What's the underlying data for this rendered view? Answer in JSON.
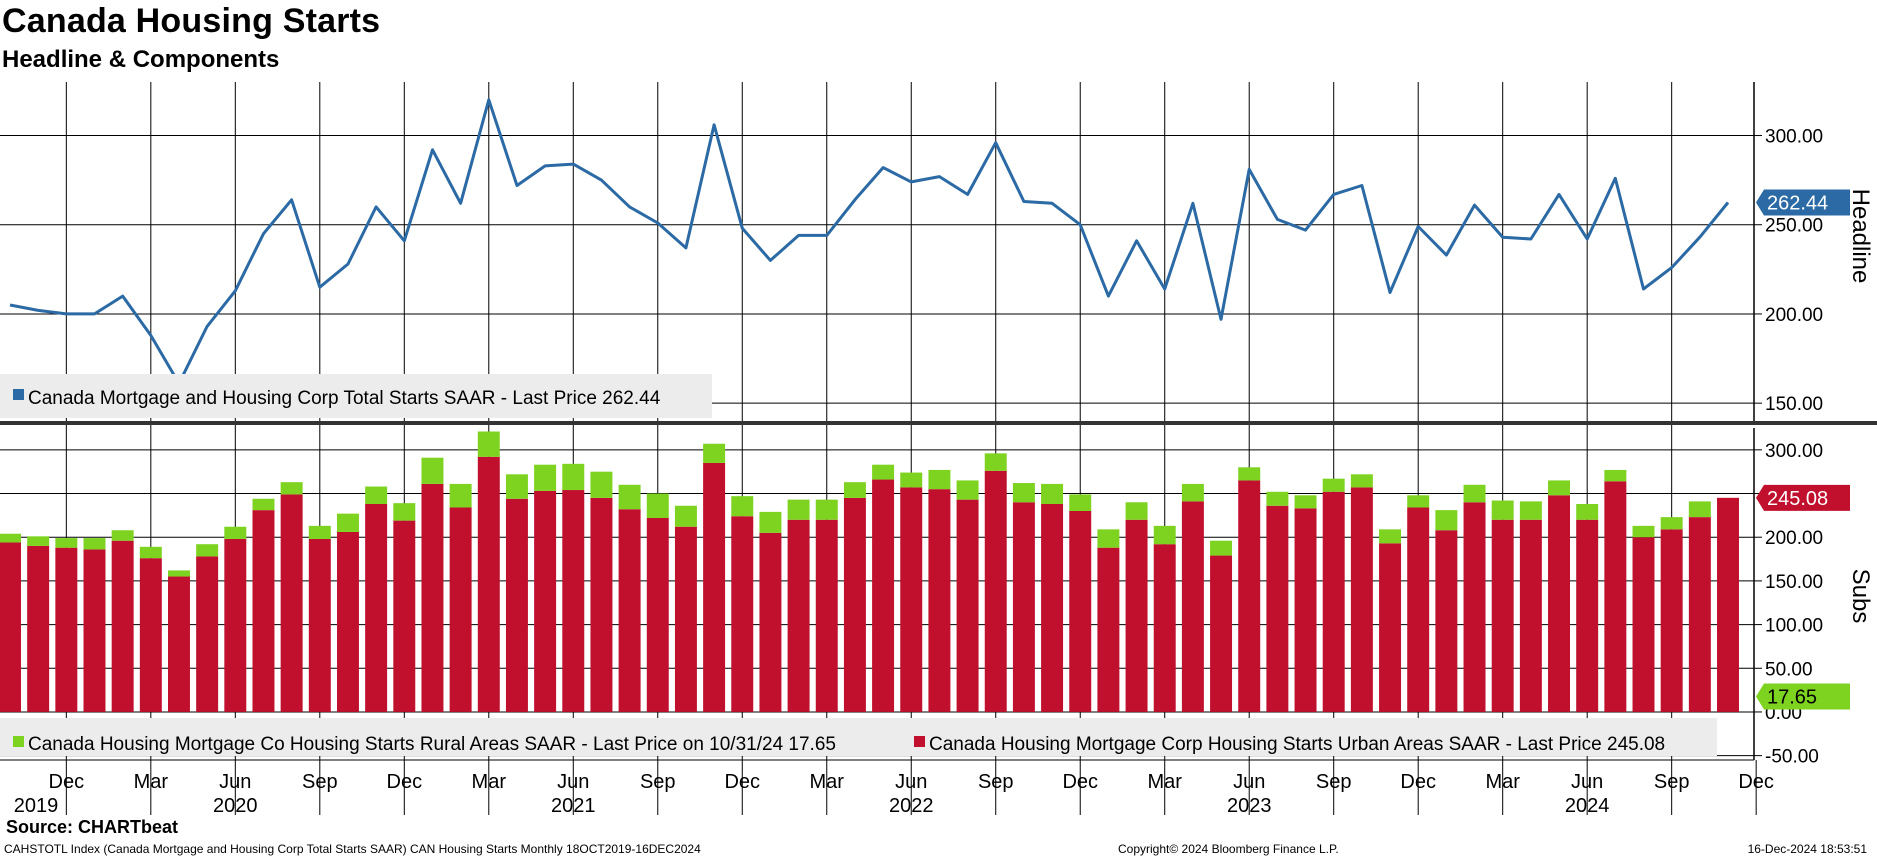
{
  "header": {
    "title": "Canada Housing Starts",
    "subtitle": "Headline & Components"
  },
  "footer": {
    "source": "Source: CHARTbeat",
    "index_text": "CAHSTOTL Index (Canada Mortgage and Housing Corp Total Starts SAAR) CAN Housing Starts  Monthly 18OCT2019-16DEC2024",
    "copyright": "Copyright© 2024 Bloomberg Finance L.P.",
    "timestamp": "16-Dec-2024 18:53:51"
  },
  "colors": {
    "headline": "#2b6aa4",
    "urban": "#c0102e",
    "rural": "#7ed321",
    "headline_tag": "#2b6aa4",
    "urban_tag": "#c0102e",
    "rural_tag": "#7ed321"
  },
  "chart_data": [
    {
      "type": "line",
      "panel": "Headline",
      "ylabel": "Headline",
      "ylim": [
        140,
        330
      ],
      "yticks": [
        "150.00",
        "200.00",
        "250.00",
        "300.00"
      ],
      "grid": true,
      "legend": "bottom-left",
      "x": [
        "2019-10",
        "2019-11",
        "2019-12",
        "2020-01",
        "2020-02",
        "2020-03",
        "2020-04",
        "2020-05",
        "2020-06",
        "2020-07",
        "2020-08",
        "2020-09",
        "2020-10",
        "2020-11",
        "2020-12",
        "2021-01",
        "2021-02",
        "2021-03",
        "2021-04",
        "2021-05",
        "2021-06",
        "2021-07",
        "2021-08",
        "2021-09",
        "2021-10",
        "2021-11",
        "2021-12",
        "2022-01",
        "2022-02",
        "2022-03",
        "2022-04",
        "2022-05",
        "2022-06",
        "2022-07",
        "2022-08",
        "2022-09",
        "2022-10",
        "2022-11",
        "2022-12",
        "2023-01",
        "2023-02",
        "2023-03",
        "2023-04",
        "2023-05",
        "2023-06",
        "2023-07",
        "2023-08",
        "2023-09",
        "2023-10",
        "2023-11",
        "2023-12",
        "2024-01",
        "2024-02",
        "2024-03",
        "2024-04",
        "2024-05",
        "2024-06",
        "2024-07",
        "2024-08",
        "2024-09",
        "2024-10",
        "2024-11"
      ],
      "series": [
        {
          "name": "Canada Mortgage and Housing Corp Total Starts SAAR",
          "values": [
            205,
            202,
            200,
            200,
            210,
            188,
            161,
            193,
            213,
            245,
            264,
            215,
            228,
            260,
            241,
            292,
            262,
            320,
            272,
            283,
            284,
            275,
            260,
            251,
            237,
            306,
            248,
            230,
            244,
            244,
            264,
            282,
            274,
            277,
            267,
            296,
            263,
            262,
            250,
            210,
            241,
            214,
            262,
            197,
            281,
            253,
            247,
            267,
            272,
            212,
            249,
            233,
            261,
            243,
            242,
            267,
            242,
            276,
            214,
            226,
            243,
            262.44
          ]
        }
      ],
      "legend_text": "Canada Mortgage and Housing Corp Total Starts SAAR - Last Price 262.44",
      "last_tag": "262.44"
    },
    {
      "type": "bar",
      "stacked": true,
      "panel": "Subs",
      "ylabel": "Subs",
      "ylim": [
        -55,
        325
      ],
      "yticks": [
        "-50.00",
        "0.00",
        "50.00",
        "100.00",
        "150.00",
        "200.00",
        "250.00",
        "300.00"
      ],
      "grid": true,
      "legend": "bottom-left",
      "x": [
        "2019-10",
        "2019-11",
        "2019-12",
        "2020-01",
        "2020-02",
        "2020-03",
        "2020-04",
        "2020-05",
        "2020-06",
        "2020-07",
        "2020-08",
        "2020-09",
        "2020-10",
        "2020-11",
        "2020-12",
        "2021-01",
        "2021-02",
        "2021-03",
        "2021-04",
        "2021-05",
        "2021-06",
        "2021-07",
        "2021-08",
        "2021-09",
        "2021-10",
        "2021-11",
        "2021-12",
        "2022-01",
        "2022-02",
        "2022-03",
        "2022-04",
        "2022-05",
        "2022-06",
        "2022-07",
        "2022-08",
        "2022-09",
        "2022-10",
        "2022-11",
        "2022-12",
        "2023-01",
        "2023-02",
        "2023-03",
        "2023-04",
        "2023-05",
        "2023-06",
        "2023-07",
        "2023-08",
        "2023-09",
        "2023-10",
        "2023-11",
        "2023-12",
        "2024-01",
        "2024-02",
        "2024-03",
        "2024-04",
        "2024-05",
        "2024-06",
        "2024-07",
        "2024-08",
        "2024-09",
        "2024-10",
        "2024-11"
      ],
      "series": [
        {
          "name": "Canada Housing Mortgage Corp Housing Starts Urban Areas SAAR",
          "values": [
            194,
            190,
            188,
            186,
            196,
            176,
            155,
            178,
            198,
            231,
            249,
            198,
            206,
            238,
            219,
            261,
            234,
            292,
            244,
            253,
            254,
            245,
            232,
            222,
            212,
            285,
            224,
            205,
            220,
            220,
            245,
            266,
            257,
            255,
            243,
            276,
            240,
            238,
            230,
            188,
            220,
            192,
            241,
            179,
            265,
            236,
            233,
            252,
            257,
            193,
            234,
            208,
            240,
            220,
            220,
            248,
            220,
            264,
            200,
            209,
            223,
            245.08
          ]
        },
        {
          "name": "Canada Housing Mortgage Co Housing Starts Rural Areas SAAR",
          "values": [
            10,
            11,
            11,
            13,
            12,
            13,
            7,
            14,
            14,
            13,
            14,
            15,
            21,
            20,
            20,
            30,
            27,
            29,
            28,
            30,
            30,
            30,
            28,
            28,
            24,
            22,
            23,
            24,
            23,
            23,
            18,
            17,
            17,
            22,
            22,
            20,
            22,
            23,
            19,
            21,
            20,
            21,
            20,
            17,
            15,
            16,
            15,
            15,
            15,
            16,
            14,
            23,
            20,
            22,
            21,
            17,
            18,
            13,
            13,
            14,
            18,
            17.65
          ]
        }
      ],
      "legend_text_rural": "Canada Housing Mortgage Co Housing Starts Rural Areas SAAR - Last Price on 10/31/24 17.65",
      "legend_text_urban": "Canada Housing Mortgage Corp Housing Starts Urban Areas SAAR - Last Price 245.08",
      "last_tag_urban": "245.08",
      "last_tag_rural": "17.65"
    }
  ],
  "x_axis": {
    "month_ticks": [
      "Dec",
      "Mar",
      "Jun",
      "Sep",
      "Dec",
      "Mar",
      "Jun",
      "Sep",
      "Dec",
      "Mar",
      "Jun",
      "Sep",
      "Dec",
      "Mar",
      "Jun",
      "Sep",
      "Dec",
      "Mar",
      "Jun",
      "Sep",
      "Dec"
    ],
    "years": [
      "2019",
      "2020",
      "2021",
      "2022",
      "2023",
      "2024"
    ]
  }
}
